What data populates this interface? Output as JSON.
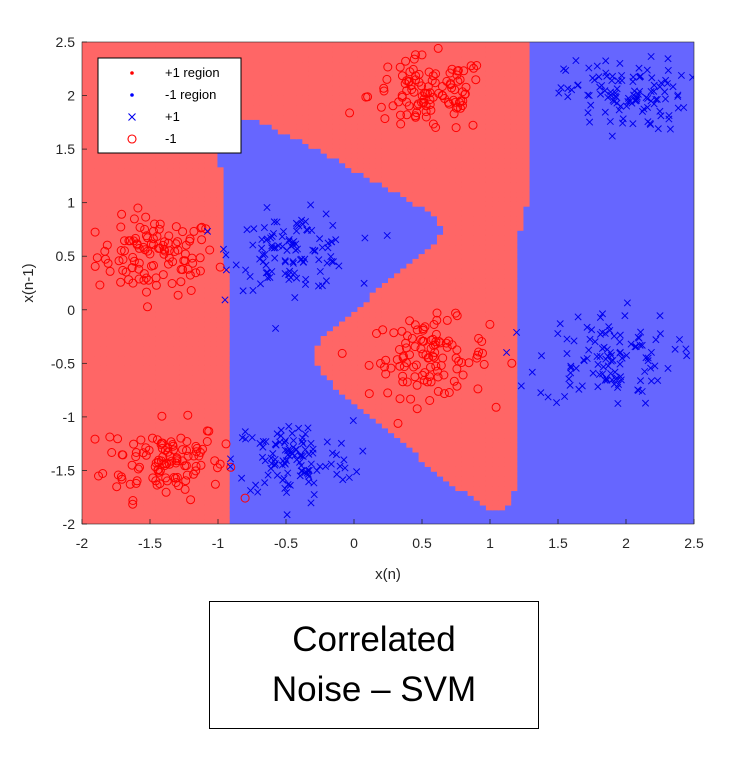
{
  "chart_data": {
    "type": "scatter",
    "title": "",
    "xlabel": "x(n)",
    "ylabel": "x(n-1)",
    "xlim": [
      -2,
      2.5
    ],
    "ylim": [
      -2,
      2.5
    ],
    "xticks": [
      "-2",
      "-1.5",
      "-1",
      "-0.5",
      "0",
      "0.5",
      "1",
      "1.5",
      "2",
      "2.5"
    ],
    "yticks": [
      "-2",
      "-1.5",
      "-1",
      "-0.5",
      "0",
      "0.5",
      "1",
      "1.5",
      "2",
      "2.5"
    ],
    "grid": false,
    "legend_position": "top-left",
    "colors": {
      "positive_region": "#ff6666",
      "negative_region": "#6666ff",
      "positive_marker": "#0000ee",
      "negative_marker": "#ff0000"
    },
    "legend": [
      {
        "label": "+1 region",
        "marker": "dot",
        "color": "#ff0000"
      },
      {
        "label": "-1 region",
        "marker": "dot",
        "color": "#0000ff"
      },
      {
        "label": "+1",
        "marker": "x",
        "color": "#0000ee"
      },
      {
        "label": "-1",
        "marker": "circle",
        "color": "#ff0000"
      }
    ],
    "decision_regions": {
      "positive_label": "+1 region",
      "negative_label": "-1 region",
      "rule": "points near the -1 cluster centres are classified as the +1 region color (red), the rest blue"
    },
    "series": [
      {
        "name": "+1",
        "marker": "x",
        "clusters": [
          {
            "center": [
              -0.45,
              0.55
            ],
            "spread": [
              0.22,
              0.18
            ],
            "count": 110
          },
          {
            "center": [
              -0.45,
              -1.4
            ],
            "spread": [
              0.22,
              0.18
            ],
            "count": 110
          },
          {
            "center": [
              1.85,
              -0.45
            ],
            "spread": [
              0.25,
              0.22
            ],
            "count": 110
          },
          {
            "center": [
              2.0,
              2.0
            ],
            "spread": [
              0.22,
              0.17
            ],
            "count": 110
          }
        ]
      },
      {
        "name": "-1",
        "marker": "circle",
        "clusters": [
          {
            "center": [
              -1.45,
              0.5
            ],
            "spread": [
              0.22,
              0.18
            ],
            "count": 110
          },
          {
            "center": [
              -1.4,
              -1.4
            ],
            "spread": [
              0.22,
              0.18
            ],
            "count": 110
          },
          {
            "center": [
              0.55,
              -0.45
            ],
            "spread": [
              0.22,
              0.18
            ],
            "count": 110
          },
          {
            "center": [
              0.55,
              2.0
            ],
            "spread": [
              0.22,
              0.18
            ],
            "count": 110
          }
        ]
      }
    ]
  },
  "caption": {
    "line1": "Correlated",
    "line2": "Noise – SVM"
  }
}
